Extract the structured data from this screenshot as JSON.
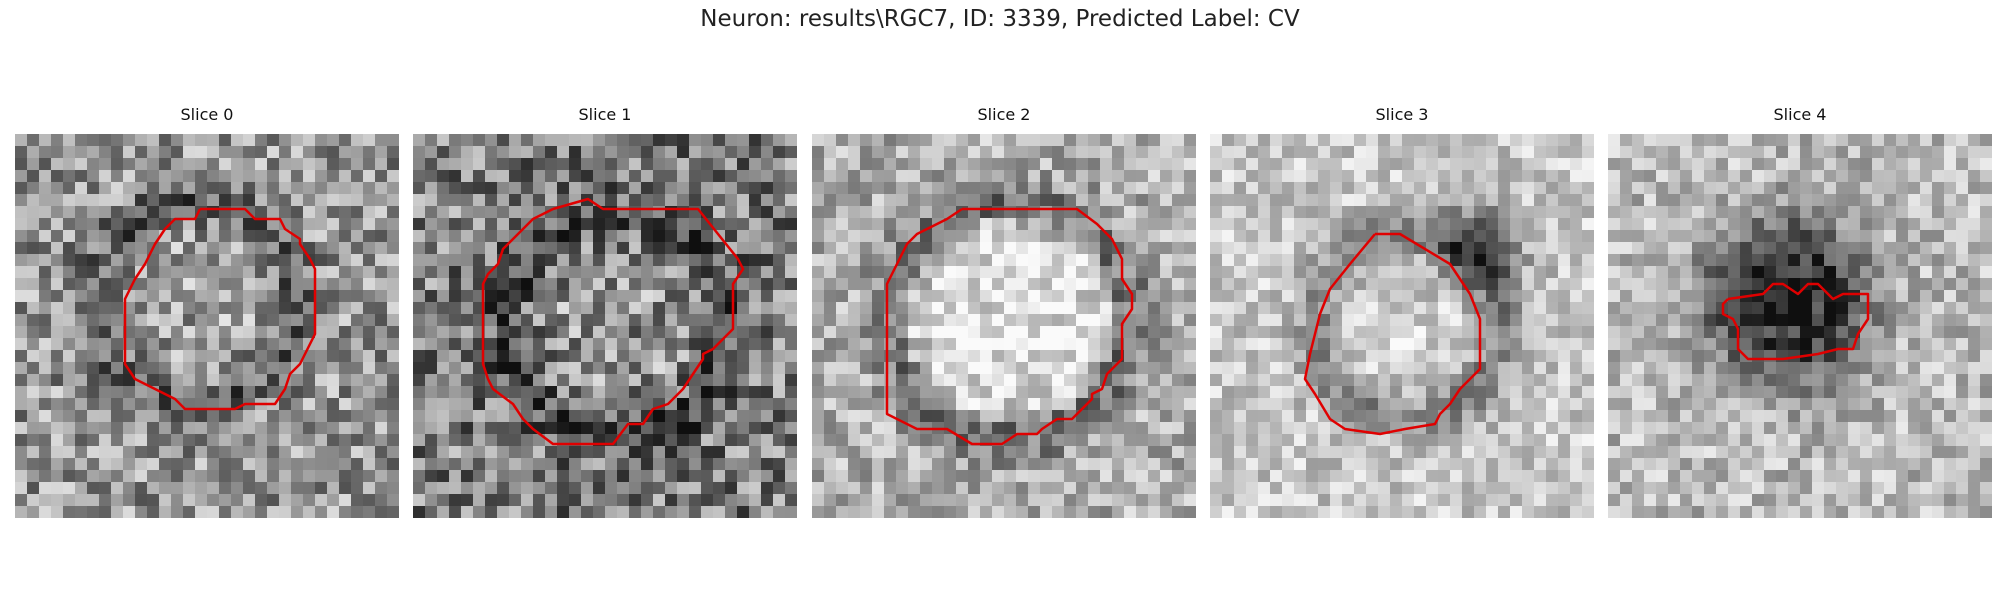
{
  "figure": {
    "title": "Neuron: results\\RGC7, ID: 3339, Predicted Label: CV"
  },
  "panels": [
    {
      "title": "Slice 0"
    },
    {
      "title": "Slice 1"
    },
    {
      "title": "Slice 2"
    },
    {
      "title": "Slice 3"
    },
    {
      "title": "Slice 4"
    }
  ],
  "colors": {
    "contour": "#e00000",
    "background": "#ffffff"
  }
}
